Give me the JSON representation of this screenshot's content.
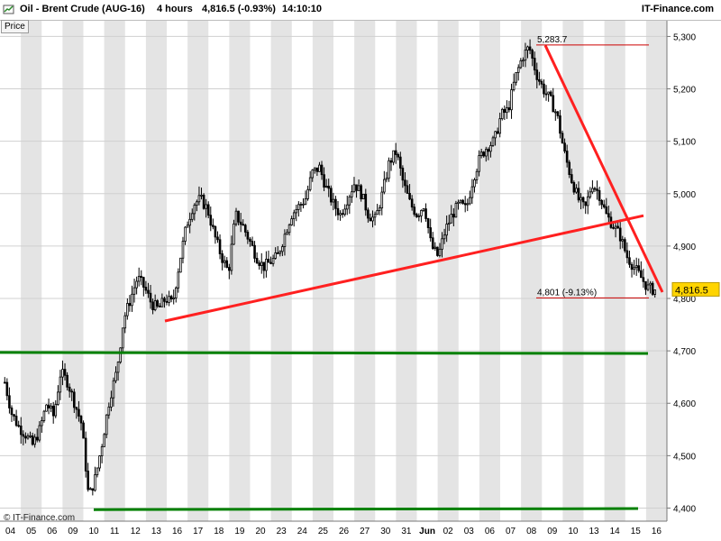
{
  "header": {
    "instrument": "Oil - Brent Crude (AUG-16)",
    "timeframe": "4 hours",
    "quote": "4,816.5 (-0.93%)",
    "time": "14:10:10",
    "brand": "IT-Finance.com"
  },
  "price_tab": "Price",
  "footer": "© IT-Finance.com",
  "colors": {
    "trendline": "#ff2020",
    "support": "#008000",
    "candle": "#000000",
    "band": "#e4e4e4",
    "last_price_bg": "#ffd400",
    "annotation_line": "#cc0000"
  },
  "chart_data": {
    "type": "candlestick",
    "x_labels": [
      "04",
      "05",
      "06",
      "09",
      "10",
      "11",
      "12",
      "13",
      "16",
      "17",
      "18",
      "19",
      "20",
      "23",
      "24",
      "25",
      "26",
      "27",
      "30",
      "31",
      "Jun",
      "02",
      "03",
      "06",
      "07",
      "08",
      "09",
      "10",
      "13",
      "14",
      "15",
      "16"
    ],
    "y_ticks": [
      "4,400",
      "4,500",
      "4,600",
      "4,700",
      "4,800",
      "4,900",
      "5,000",
      "5,100",
      "5,200",
      "5,300"
    ],
    "y_tick_values": [
      4400,
      4500,
      4600,
      4700,
      4800,
      4900,
      5000,
      5100,
      5200,
      5300
    ],
    "ylim": [
      4375,
      5330
    ],
    "last_price": {
      "label": "4,816.5",
      "value": 4816.5
    },
    "annotations": [
      {
        "label": "5,283.7",
        "value": 5283.7
      },
      {
        "label": "4,801 (-9.13%)",
        "value": 4801
      }
    ],
    "closes": [
      4640,
      4580,
      4555,
      4540,
      4520,
      4550,
      4600,
      4575,
      4660,
      4640,
      4600,
      4560,
      4420,
      4460,
      4530,
      4610,
      4660,
      4760,
      4800,
      4840,
      4820,
      4790,
      4780,
      4800,
      4790,
      4870,
      4940,
      4980,
      4990,
      4970,
      4920,
      4880,
      4850,
      4960,
      4940,
      4910,
      4880,
      4860,
      4870,
      4880,
      4920,
      4960,
      4975,
      4990,
      5040,
      5050,
      5010,
      4980,
      4960,
      4990,
      5020,
      5000,
      4960,
      4950,
      5000,
      5060,
      5080,
      5020,
      4980,
      4960,
      4980,
      4900,
      4880,
      4930,
      4960,
      4980,
      4970,
      5030,
      5070,
      5090,
      5100,
      5150,
      5160,
      5220,
      5260,
      5280,
      5230,
      5200,
      5180,
      5150,
      5080,
      5030,
      4990,
      4970,
      5020,
      5000,
      4960,
      4940,
      4920,
      4880,
      4860,
      4840,
      4820,
      4816
    ]
  }
}
